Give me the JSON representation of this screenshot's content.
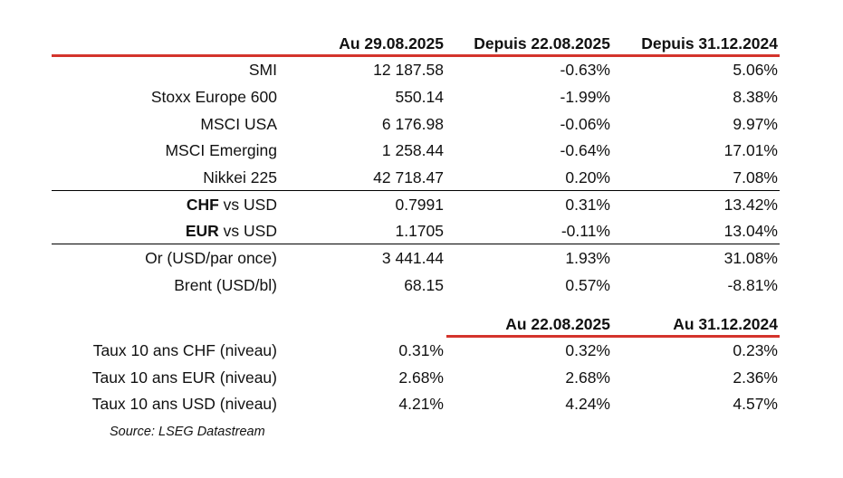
{
  "table1": {
    "headers": [
      "Au 29.08.2025",
      "Depuis 22.08.2025",
      "Depuis 31.12.2024"
    ],
    "rows": [
      {
        "label": "SMI",
        "v1": "12 187.58",
        "v2": "-0.63%",
        "v3": "5.06%"
      },
      {
        "label": "Stoxx Europe 600",
        "v1": "550.14",
        "v2": "-1.99%",
        "v3": "8.38%"
      },
      {
        "label": "MSCI USA",
        "v1": "6 176.98",
        "v2": "-0.06%",
        "v3": "9.97%"
      },
      {
        "label": "MSCI Emerging",
        "v1": "1 258.44",
        "v2": "-0.64%",
        "v3": "17.01%"
      },
      {
        "label": "Nikkei 225",
        "v1": "42 718.47",
        "v2": "0.20%",
        "v3": "7.08%"
      },
      {
        "label_bold": "CHF",
        "label_rest": " vs USD",
        "v1": "0.7991",
        "v2": "0.31%",
        "v3": "13.42%"
      },
      {
        "label_bold": "EUR",
        "label_rest": " vs USD",
        "v1": "1.1705",
        "v2": "-0.11%",
        "v3": "13.04%"
      },
      {
        "label": "Or (USD/par once)",
        "v1": "3 441.44",
        "v2": "1.93%",
        "v3": "31.08%"
      },
      {
        "label": "Brent (USD/bl)",
        "v1": "68.15",
        "v2": "0.57%",
        "v3": "-8.81%"
      }
    ]
  },
  "table2": {
    "headers": [
      "Au 22.08.2025",
      "Au 31.12.2024"
    ],
    "rows": [
      {
        "label": "Taux 10 ans CHF (niveau)",
        "v1": "0.31%",
        "v2": "0.32%",
        "v3": "0.23%"
      },
      {
        "label": "Taux 10 ans EUR (niveau)",
        "v1": "2.68%",
        "v2": "2.68%",
        "v3": "2.36%"
      },
      {
        "label": "Taux 10 ans USD (niveau)",
        "v1": "4.21%",
        "v2": "4.24%",
        "v3": "4.57%"
      }
    ]
  },
  "source": "Source: LSEG Datastream",
  "colors": {
    "accent_rule": "#d4342c",
    "text": "#111111",
    "divider": "#000000"
  }
}
